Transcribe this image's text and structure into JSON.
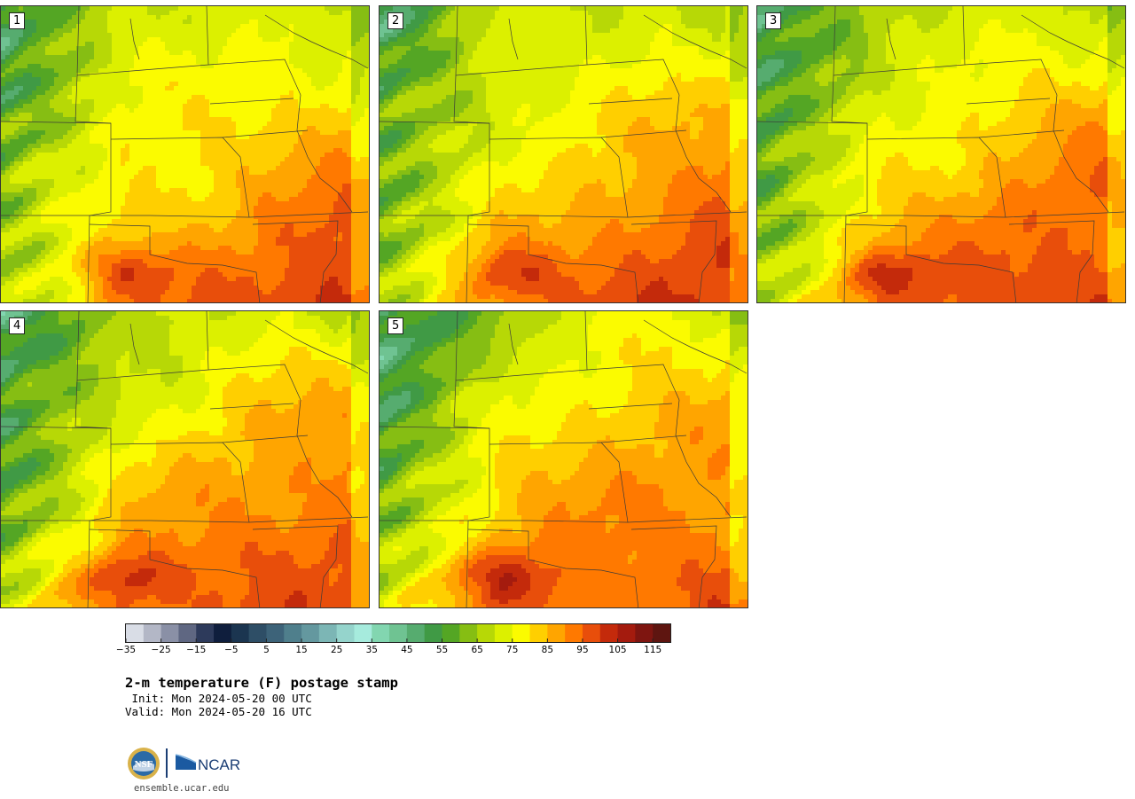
{
  "panels": [
    {
      "label": "1"
    },
    {
      "label": "2"
    },
    {
      "label": "3"
    },
    {
      "label": "4"
    },
    {
      "label": "5"
    }
  ],
  "colorbar": {
    "ticks": [
      "−35",
      "−25",
      "−15",
      "−5",
      "5",
      "15",
      "25",
      "35",
      "45",
      "55",
      "65",
      "75",
      "85",
      "95",
      "105",
      "115"
    ],
    "colors": [
      "#d9dde6",
      "#b3b7c6",
      "#8a90a6",
      "#5f6782",
      "#2d3a5b",
      "#0f1e3d",
      "#1b3550",
      "#2e4e66",
      "#3d6379",
      "#4f7f8c",
      "#64989f",
      "#7cb6b5",
      "#95d4cc",
      "#a6ebdd",
      "#82d6b0",
      "#6fc392",
      "#56ac6f",
      "#409a45",
      "#54a624",
      "#86be13",
      "#b7d806",
      "#dcf000",
      "#fbfb00",
      "#ffcf00",
      "#ffa500",
      "#ff7900",
      "#e84e0b",
      "#c42a0b",
      "#a41b0e",
      "#7e1510",
      "#5e1510"
    ]
  },
  "title": "2-m temperature (F) postage stamp",
  "init": " Init: Mon 2024-05-20 00 UTC",
  "valid": "Valid: Mon 2024-05-20 16 UTC",
  "logos": {
    "ncar": "NCAR"
  },
  "site": "ensemble.ucar.edu"
}
